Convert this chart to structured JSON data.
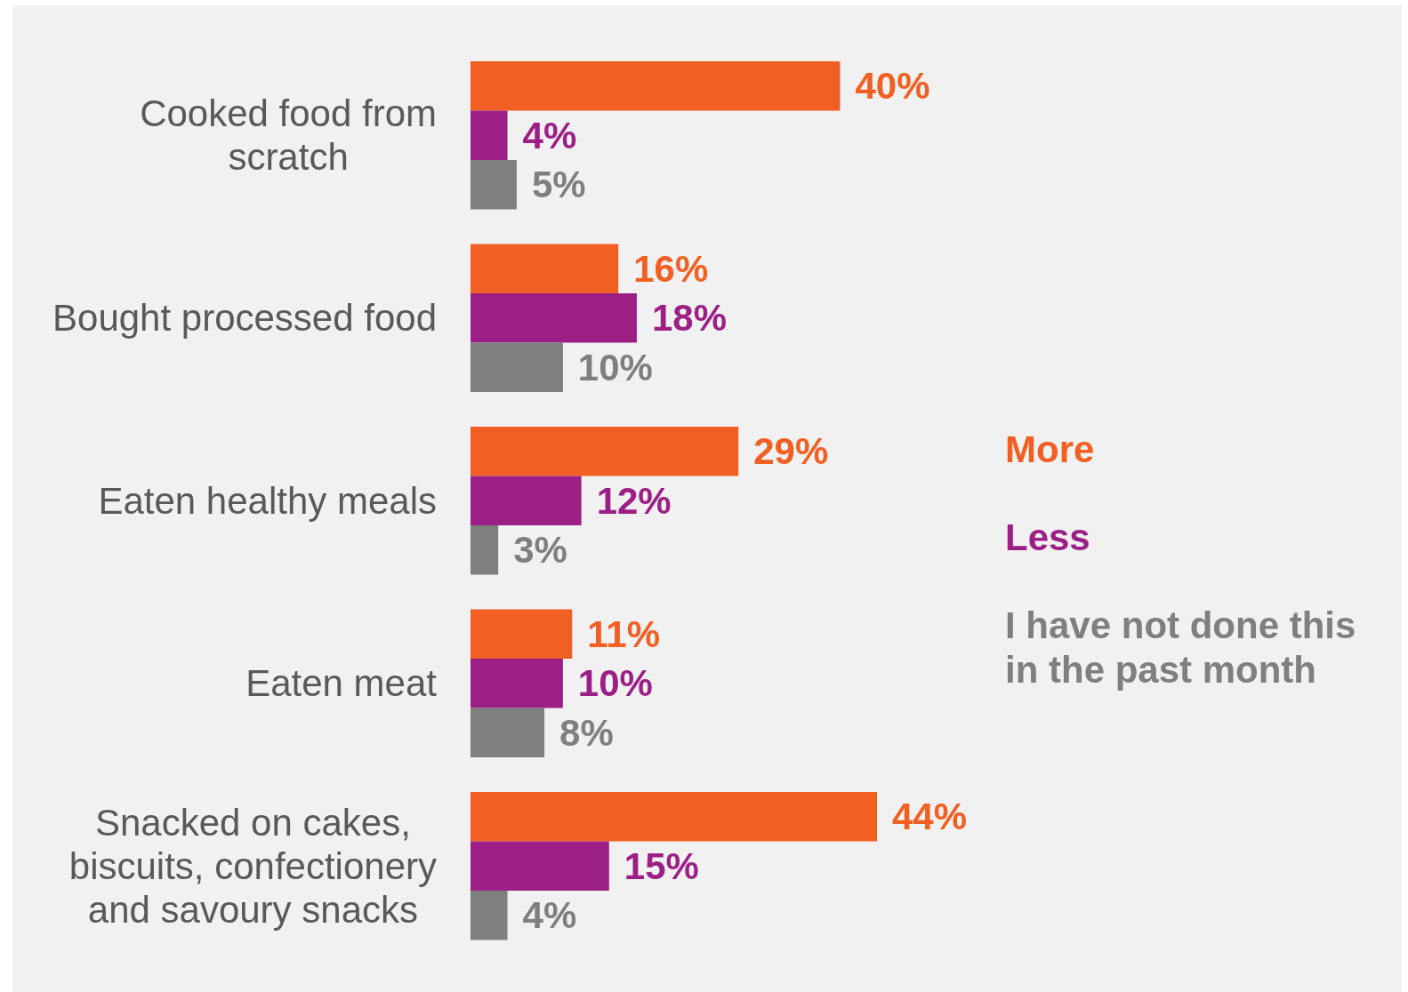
{
  "chart_data": {
    "type": "bar",
    "orientation": "horizontal",
    "categories": [
      "Cooked food from scratch",
      "Bought processed food",
      "Eaten healthy meals",
      "Eaten meat",
      "Snacked on cakes, biscuits, confectionery and savoury snacks"
    ],
    "series": [
      {
        "name": "More",
        "color": "#f15f22",
        "values": [
          40,
          16,
          29,
          11,
          44
        ],
        "value_labels": [
          "40%",
          "16%",
          "29%",
          "11%",
          "44%"
        ]
      },
      {
        "name": "Less",
        "color": "#9c1f86",
        "values": [
          4,
          18,
          12,
          10,
          15
        ],
        "value_labels": [
          "4%",
          "18%",
          "12%",
          "10%",
          "15%"
        ]
      },
      {
        "name": "I have not done this in the past month",
        "color": "#7f7f7f",
        "values": [
          5,
          10,
          3,
          8,
          4
        ],
        "value_labels": [
          "5%",
          "10%",
          "3%",
          "8%",
          "4%"
        ]
      }
    ],
    "legend": "right"
  }
}
